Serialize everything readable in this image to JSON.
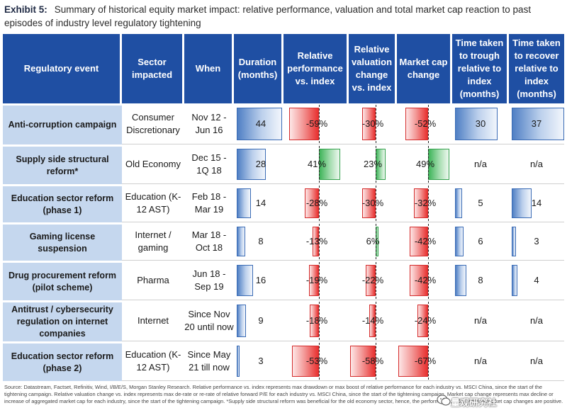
{
  "title": {
    "label": "Exhibit 5:",
    "text": "Summary of historical equity market impact: relative performance, valuation and total market cap reaction to past episodes of industry level regulatory tightening"
  },
  "headers": {
    "event": "Regulatory  event",
    "sector": "Sector impacted",
    "when": "When",
    "duration": "Duration (months)",
    "relperf": "Relative performance vs. index",
    "relval": "Relative valuation change vs. index",
    "mcap": "Market cap change",
    "trough": "Time taken to trough relative to index (months)",
    "recover": "Time taken to recover relative to index (months)"
  },
  "rows": [
    {
      "event": "Anti-corruption campaign",
      "sector": "Consumer Discretionary",
      "when": "Nov 12 - Jun 16",
      "duration": "44",
      "relperf": "-59%",
      "relval": "-30%",
      "mcap": "-52%",
      "trough": "30",
      "recover": "37"
    },
    {
      "event": "Supply side structural reform*",
      "sector": "Old Economy",
      "when": "Dec 15 - 1Q 18",
      "duration": "28",
      "relperf": "41%",
      "relval": "23%",
      "mcap": "49%",
      "trough": "n/a",
      "recover": "n/a"
    },
    {
      "event": "Education sector reform (phase 1)",
      "sector": "Education (K-12 AST)",
      "when": "Feb 18 - Mar 19",
      "duration": "14",
      "relperf": "-28%",
      "relval": "-30%",
      "mcap": "-32%",
      "trough": "5",
      "recover": "14"
    },
    {
      "event": "Gaming license suspension",
      "sector": "Internet / gaming",
      "when": "Mar 18 - Oct 18",
      "duration": "8",
      "relperf": "-13%",
      "relval": "6%",
      "mcap": "-42%",
      "trough": "6",
      "recover": "3"
    },
    {
      "event": "Drug procurement reform (pilot scheme)",
      "sector": "Pharma",
      "when": "Jun 18 - Sep 19",
      "duration": "16",
      "relperf": "-19%",
      "relval": "-22%",
      "mcap": "-42%",
      "trough": "8",
      "recover": "4"
    },
    {
      "event": "Antitrust / cybersecurity regulation on internet companies",
      "sector": "Internet",
      "when": "Since Nov 20 until now",
      "duration": "9",
      "relperf": "-18%",
      "relval": "-14%",
      "mcap": "-24%",
      "trough": "n/a",
      "recover": "n/a"
    },
    {
      "event": "Education sector reform (phase 2)",
      "sector": "Education (K-12 AST)",
      "when": "Since May 21 till now",
      "duration": "3",
      "relperf": "-53%",
      "relval": "-58%",
      "mcap": "-67%",
      "trough": "n/a",
      "recover": "n/a"
    }
  ],
  "footnote": "Source: Datastream, Factset, Refinitiv, Wind, I/B/E/S, Morgan Stanley Research. Relative performance vs. index represents max drawdown or max boost of relative performance for each industry vs. MSCI China, since the start of the tightening campaign. Relative valuation change vs. index represents max de-rate or re-rate of relative forward P/E for each industry vs. MSCI China, since the start of the tightening campaign. Market cap change represents max decline or increase of aggregated market cap for each industry, since the start of the tightening campaign. *Supply side structural reform was beneficial for the old economy sector, hence, the performance, valuation and market cap changes are positive.",
  "watermark": "量观研究社",
  "colors": {
    "header": "#1f4fa3",
    "event_bg": "#c5d7ee",
    "positive": "#3fb45a",
    "negative": "#e8302f",
    "neutral_bar": "#4f7fc4"
  }
}
